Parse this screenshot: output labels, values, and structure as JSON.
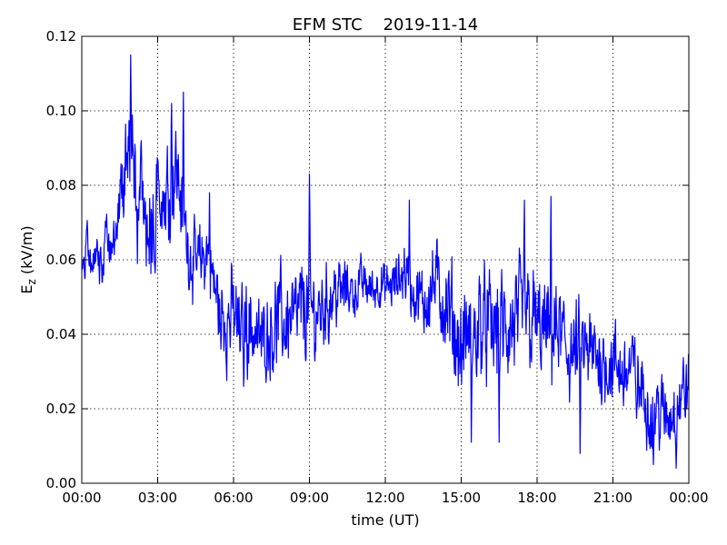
{
  "chart_data": {
    "type": "line",
    "title": "EFM STC    2019-11-14",
    "xlabel": "time (UT)",
    "ylabel_main": "E",
    "ylabel_sub": "z",
    "ylabel_unit": " (kV/m)",
    "x_ticks": [
      "00:00",
      "03:00",
      "06:00",
      "09:00",
      "12:00",
      "15:00",
      "18:00",
      "21:00",
      "00:00"
    ],
    "x_tick_hours": [
      0,
      3,
      6,
      9,
      12,
      15,
      18,
      21,
      24
    ],
    "xlim_hours": [
      0,
      24
    ],
    "y_ticks": [
      "0.00",
      "0.02",
      "0.04",
      "0.06",
      "0.08",
      "0.10",
      "0.12"
    ],
    "y_tick_values": [
      0,
      0.02,
      0.04,
      0.06,
      0.08,
      0.1,
      0.12
    ],
    "ylim": [
      0,
      0.12
    ],
    "grid": true,
    "line_color": "#0000ff",
    "series": [
      {
        "x_hours": [
          0.0,
          0.25,
          0.5,
          0.75,
          1.0,
          1.25,
          1.5,
          1.75,
          2.0,
          2.25,
          2.5,
          2.75,
          3.0,
          3.25,
          3.5,
          3.75,
          4.0,
          4.25,
          4.5,
          4.75,
          5.0,
          5.25,
          5.5,
          5.75,
          6.0,
          6.25,
          6.5,
          6.75,
          7.0,
          7.25,
          7.5,
          7.75,
          8.0,
          8.25,
          8.5,
          8.75,
          9.0,
          9.25,
          9.5,
          9.75,
          10.0,
          10.25,
          10.5,
          10.75,
          11.0,
          11.25,
          11.5,
          11.75,
          12.0,
          12.25,
          12.5,
          12.75,
          13.0,
          13.25,
          13.5,
          13.75,
          14.0,
          14.25,
          14.5,
          14.75,
          15.0,
          15.25,
          15.5,
          15.75,
          16.0,
          16.25,
          16.5,
          16.75,
          17.0,
          17.25,
          17.5,
          17.75,
          18.0,
          18.25,
          18.5,
          18.75,
          19.0,
          19.25,
          19.5,
          19.75,
          20.0,
          20.25,
          20.5,
          20.75,
          21.0,
          21.25,
          21.5,
          21.75,
          22.0,
          22.25,
          22.5,
          22.75,
          23.0,
          23.25,
          23.5,
          23.75,
          24.0
        ],
        "y_mean": [
          0.058,
          0.062,
          0.06,
          0.058,
          0.066,
          0.064,
          0.072,
          0.08,
          0.092,
          0.075,
          0.07,
          0.068,
          0.078,
          0.076,
          0.082,
          0.085,
          0.072,
          0.062,
          0.058,
          0.06,
          0.062,
          0.052,
          0.046,
          0.044,
          0.046,
          0.04,
          0.044,
          0.042,
          0.038,
          0.04,
          0.042,
          0.044,
          0.043,
          0.045,
          0.044,
          0.047,
          0.046,
          0.045,
          0.047,
          0.049,
          0.052,
          0.051,
          0.053,
          0.051,
          0.054,
          0.053,
          0.052,
          0.054,
          0.052,
          0.053,
          0.054,
          0.058,
          0.052,
          0.05,
          0.048,
          0.052,
          0.054,
          0.05,
          0.046,
          0.041,
          0.036,
          0.04,
          0.038,
          0.044,
          0.042,
          0.04,
          0.044,
          0.04,
          0.041,
          0.043,
          0.046,
          0.044,
          0.042,
          0.04,
          0.04,
          0.041,
          0.038,
          0.036,
          0.034,
          0.036,
          0.034,
          0.034,
          0.034,
          0.032,
          0.032,
          0.03,
          0.03,
          0.031,
          0.026,
          0.024,
          0.018,
          0.02,
          0.018,
          0.018,
          0.022,
          0.024,
          0.026
        ],
        "y_range": [
          0.01,
          0.012,
          0.01,
          0.01,
          0.012,
          0.012,
          0.014,
          0.022,
          0.024,
          0.022,
          0.02,
          0.022,
          0.022,
          0.02,
          0.024,
          0.022,
          0.018,
          0.016,
          0.016,
          0.016,
          0.016,
          0.018,
          0.018,
          0.02,
          0.02,
          0.018,
          0.02,
          0.02,
          0.018,
          0.018,
          0.02,
          0.022,
          0.022,
          0.02,
          0.02,
          0.022,
          0.022,
          0.02,
          0.018,
          0.018,
          0.016,
          0.014,
          0.012,
          0.012,
          0.01,
          0.01,
          0.01,
          0.01,
          0.01,
          0.01,
          0.012,
          0.014,
          0.012,
          0.014,
          0.016,
          0.018,
          0.018,
          0.02,
          0.022,
          0.024,
          0.022,
          0.022,
          0.024,
          0.024,
          0.024,
          0.024,
          0.024,
          0.024,
          0.024,
          0.024,
          0.024,
          0.024,
          0.022,
          0.022,
          0.022,
          0.022,
          0.022,
          0.022,
          0.02,
          0.02,
          0.02,
          0.02,
          0.02,
          0.018,
          0.018,
          0.018,
          0.018,
          0.018,
          0.018,
          0.018,
          0.016,
          0.016,
          0.016,
          0.016,
          0.016,
          0.016,
          0.016
        ],
        "peaks": [
          {
            "x_hours": 1.93,
            "y": 0.115
          },
          {
            "x_hours": 2.35,
            "y": 0.092
          },
          {
            "x_hours": 3.55,
            "y": 0.102
          },
          {
            "x_hours": 4.02,
            "y": 0.105
          },
          {
            "x_hours": 5.05,
            "y": 0.078
          },
          {
            "x_hours": 9.0,
            "y": 0.083
          },
          {
            "x_hours": 12.95,
            "y": 0.076
          },
          {
            "x_hours": 17.5,
            "y": 0.076
          },
          {
            "x_hours": 18.55,
            "y": 0.077
          }
        ],
        "troughs": [
          {
            "x_hours": 2.2,
            "y": 0.059
          },
          {
            "x_hours": 5.5,
            "y": 0.036
          },
          {
            "x_hours": 6.4,
            "y": 0.026
          },
          {
            "x_hours": 15.4,
            "y": 0.011
          },
          {
            "x_hours": 16.5,
            "y": 0.011
          },
          {
            "x_hours": 19.7,
            "y": 0.008
          },
          {
            "x_hours": 22.6,
            "y": 0.005
          },
          {
            "x_hours": 23.5,
            "y": 0.004
          }
        ]
      }
    ]
  }
}
